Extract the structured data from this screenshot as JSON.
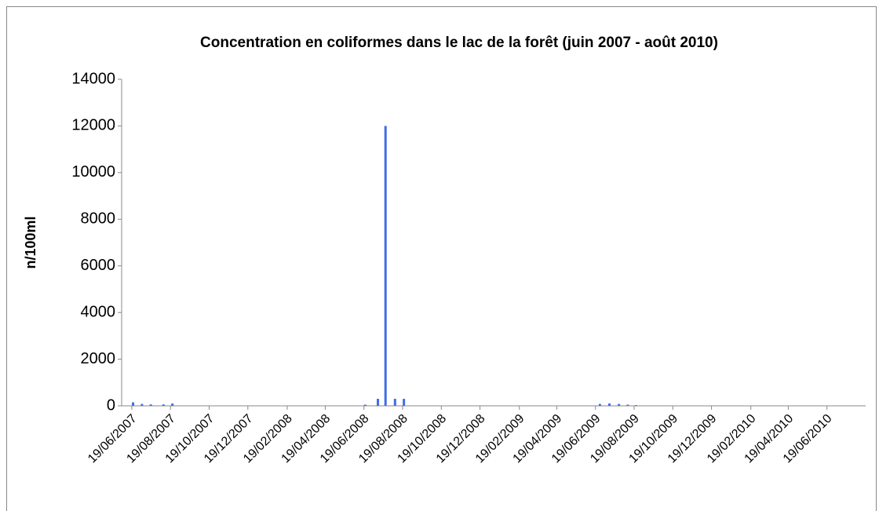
{
  "chart_data": {
    "type": "bar",
    "title": "Concentration en coliformes dans le lac de la forêt (juin 2007 - août 2010)",
    "y_label": "n/100ml",
    "x": [
      "21/06/2007",
      "05/07/2007",
      "19/07/2007",
      "08/08/2007",
      "22/08/2007",
      "21/06/2008",
      "11/07/2008",
      "23/07/2008",
      "07/08/2008",
      "21/08/2008",
      "26/06/2009",
      "11/07/2009",
      "26/07/2009",
      "09/08/2009",
      "22/08/2009"
    ],
    "values": [
      150,
      80,
      60,
      60,
      100,
      50,
      300,
      12000,
      300,
      300,
      80,
      100,
      80,
      50,
      30
    ],
    "color": "#3d6ee8",
    "xlim": [
      "03/06/2007",
      "19/08/2010"
    ],
    "xticks": [
      "19/06/2007",
      "19/08/2007",
      "19/10/2007",
      "19/12/2007",
      "19/02/2008",
      "19/04/2008",
      "19/06/2008",
      "19/08/2008",
      "19/10/2008",
      "19/12/2008",
      "19/02/2009",
      "19/04/2009",
      "19/06/2009",
      "19/08/2009",
      "19/10/2009",
      "19/12/2009",
      "19/02/2010",
      "19/04/2010",
      "19/06/2010"
    ],
    "ylim": [
      0,
      14000
    ],
    "yticks": [
      0,
      2000,
      4000,
      6000,
      8000,
      10000,
      12000,
      14000
    ],
    "grid": false
  }
}
